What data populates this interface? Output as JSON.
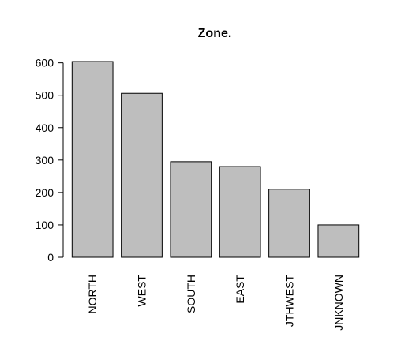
{
  "chart_data": {
    "type": "bar",
    "title": "Zone.",
    "categories": [
      "NORTH",
      "WEST",
      "SOUTH",
      "EAST",
      "JTHWEST",
      "JNKNOWN"
    ],
    "values": [
      604,
      506,
      295,
      280,
      210,
      100
    ],
    "yticks": [
      0,
      100,
      200,
      300,
      400,
      500,
      600
    ],
    "ylim": [
      0,
      604
    ],
    "xlabel": "",
    "ylabel": "",
    "bar_color": "#bebebe",
    "border_color": "#000000"
  }
}
